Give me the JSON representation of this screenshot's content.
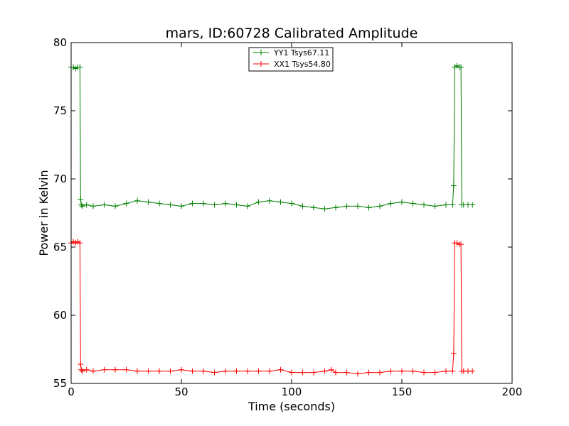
{
  "chart_data": {
    "type": "line",
    "title": "mars, ID:60728 Calibrated Amplitude",
    "xlabel": "Time (seconds)",
    "ylabel": "Power in Kelvin",
    "xlim": [
      0,
      200
    ],
    "ylim": [
      55,
      80
    ],
    "xticks": [
      "0",
      "50",
      "100",
      "150",
      "200"
    ],
    "yticks": [
      "55",
      "60",
      "65",
      "70",
      "75",
      "80"
    ],
    "legend_position": "upper-center",
    "grid": false,
    "series": [
      {
        "name": "YY1 Tsys67.11",
        "color": "#008000",
        "x": [
          0,
          1,
          2,
          3,
          4,
          4.3,
          4.6,
          5,
          7,
          10,
          15,
          20,
          25,
          30,
          35,
          40,
          45,
          50,
          55,
          60,
          65,
          70,
          75,
          80,
          85,
          90,
          95,
          100,
          105,
          110,
          115,
          120,
          125,
          130,
          135,
          140,
          145,
          150,
          155,
          160,
          165,
          170,
          173,
          173.5,
          174,
          175,
          176,
          176.8,
          177.2,
          178,
          180,
          182
        ],
        "y": [
          78.2,
          78.2,
          78.1,
          78.2,
          78.2,
          68.5,
          68.1,
          68.0,
          68.1,
          68.0,
          68.1,
          68.0,
          68.2,
          68.4,
          68.3,
          68.2,
          68.1,
          68.0,
          68.2,
          68.2,
          68.1,
          68.2,
          68.1,
          68.0,
          68.3,
          68.4,
          68.3,
          68.2,
          68.0,
          67.9,
          67.8,
          67.9,
          68.0,
          68.0,
          67.9,
          68.0,
          68.2,
          68.3,
          68.2,
          68.1,
          68.0,
          68.1,
          68.1,
          69.5,
          78.2,
          78.3,
          78.2,
          78.2,
          68.1,
          68.1,
          68.1,
          68.1
        ]
      },
      {
        "name": "XX1 Tsys54.80",
        "color": "#ff0000",
        "x": [
          0,
          1,
          2,
          3,
          4,
          4.3,
          4.6,
          5,
          7,
          10,
          15,
          20,
          25,
          30,
          35,
          40,
          45,
          50,
          55,
          60,
          65,
          70,
          75,
          80,
          85,
          90,
          95,
          100,
          105,
          110,
          115,
          118,
          120,
          125,
          130,
          135,
          140,
          145,
          150,
          155,
          160,
          165,
          170,
          173,
          173.5,
          174,
          175,
          176,
          176.8,
          177.2,
          178,
          180,
          182
        ],
        "y": [
          65.3,
          65.4,
          65.3,
          65.4,
          65.3,
          56.4,
          56.0,
          55.9,
          56.0,
          55.9,
          56.0,
          56.0,
          56.0,
          55.9,
          55.9,
          55.9,
          55.9,
          56.0,
          55.9,
          55.9,
          55.8,
          55.9,
          55.9,
          55.9,
          55.9,
          55.9,
          56.0,
          55.8,
          55.8,
          55.8,
          55.9,
          56.0,
          55.8,
          55.8,
          55.7,
          55.8,
          55.8,
          55.9,
          55.9,
          55.9,
          55.8,
          55.8,
          55.9,
          55.9,
          57.2,
          65.3,
          65.3,
          65.2,
          65.2,
          55.9,
          55.9,
          55.9,
          55.9
        ]
      }
    ]
  }
}
